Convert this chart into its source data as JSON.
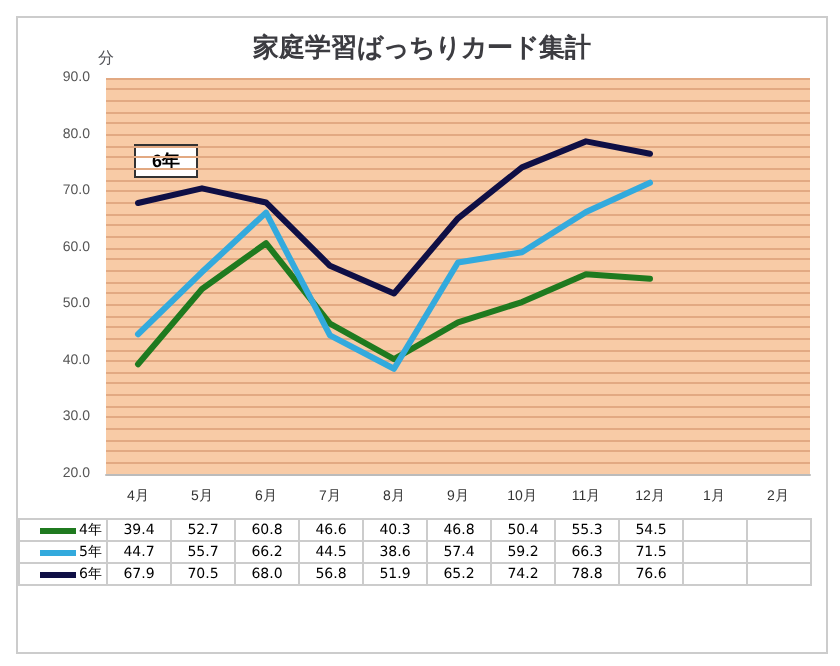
{
  "chart_data": {
    "type": "line",
    "title": "家庭学習ばっちりカード集計",
    "ylabel": "分",
    "categories": [
      "4月",
      "5月",
      "6月",
      "7月",
      "8月",
      "9月",
      "10月",
      "11月",
      "12月",
      "1月",
      "2月"
    ],
    "series": [
      {
        "name": "4年",
        "color": "#1f7a1f",
        "values": [
          39.4,
          52.7,
          60.8,
          46.6,
          40.3,
          46.8,
          50.4,
          55.3,
          54.5,
          null,
          null
        ],
        "value_labels": [
          "39.4",
          "52.7",
          "60.8",
          "46.6",
          "40.3",
          "46.8",
          "50.4",
          "55.3",
          "54.5",
          null,
          null
        ]
      },
      {
        "name": "5年",
        "color": "#33aadd",
        "values": [
          44.7,
          55.7,
          66.2,
          44.5,
          38.6,
          57.4,
          59.2,
          66.3,
          71.5,
          null,
          null
        ],
        "value_labels": [
          "44.7",
          "55.7",
          "66.2",
          "44.5",
          "38.6",
          "57.4",
          "59.2",
          "66.3",
          "71.5",
          null,
          null
        ]
      },
      {
        "name": "6年",
        "color": "#0f0f45",
        "values": [
          67.9,
          70.5,
          68.0,
          56.8,
          51.9,
          65.2,
          74.2,
          78.8,
          76.6,
          null,
          null
        ],
        "value_labels": [
          "67.9",
          "70.5",
          "68.0",
          "56.8",
          "51.9",
          "65.2",
          "74.2",
          "78.8",
          "76.6",
          null,
          null
        ]
      }
    ],
    "ylim": [
      20,
      90
    ],
    "yticks": [
      {
        "value": 20,
        "label": "20.0"
      },
      {
        "value": 22,
        "label": null
      },
      {
        "value": 24,
        "label": null
      },
      {
        "value": 26,
        "label": null
      },
      {
        "value": 28,
        "label": null
      },
      {
        "value": 30,
        "label": "30.0"
      },
      {
        "value": 32,
        "label": null
      },
      {
        "value": 34,
        "label": null
      },
      {
        "value": 36,
        "label": null
      },
      {
        "value": 38,
        "label": null
      },
      {
        "value": 40,
        "label": "40.0"
      },
      {
        "value": 42,
        "label": null
      },
      {
        "value": 44,
        "label": null
      },
      {
        "value": 46,
        "label": null
      },
      {
        "value": 48,
        "label": null
      },
      {
        "value": 50,
        "label": "50.0"
      },
      {
        "value": 52,
        "label": null
      },
      {
        "value": 54,
        "label": null
      },
      {
        "value": 56,
        "label": null
      },
      {
        "value": 58,
        "label": null
      },
      {
        "value": 60,
        "label": "60.0"
      },
      {
        "value": 62,
        "label": null
      },
      {
        "value": 64,
        "label": null
      },
      {
        "value": 66,
        "label": null
      },
      {
        "value": 68,
        "label": null
      },
      {
        "value": 70,
        "label": "70.0"
      },
      {
        "value": 72,
        "label": null
      },
      {
        "value": 74,
        "label": null
      },
      {
        "value": 76,
        "label": null
      },
      {
        "value": 78,
        "label": null
      },
      {
        "value": 80,
        "label": "80.0"
      },
      {
        "value": 82,
        "label": null
      },
      {
        "value": 84,
        "label": null
      },
      {
        "value": 86,
        "label": null
      },
      {
        "value": 88,
        "label": null
      },
      {
        "value": 90,
        "label": "90.0"
      }
    ],
    "grid": "y",
    "marker": "none",
    "line_style": "solid",
    "legend": "bottom",
    "annotations": [
      "6年"
    ]
  }
}
